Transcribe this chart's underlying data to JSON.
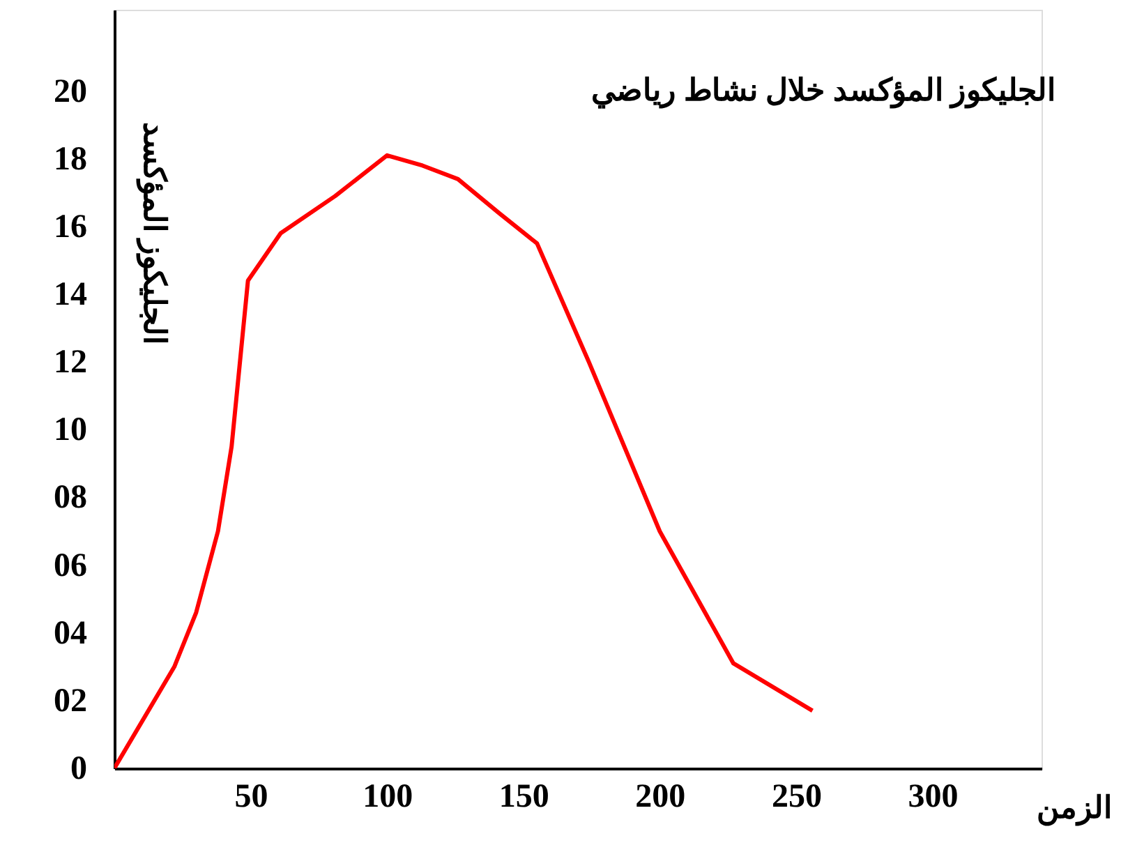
{
  "chart_data": {
    "type": "line",
    "title": "الجليكوز المؤكسد خلال نشاط رياضي",
    "xlabel": "الزمن",
    "ylabel": "الجليكوز المؤكسد",
    "x": [
      0,
      22,
      30,
      38,
      43,
      49,
      61,
      81,
      100,
      113,
      126,
      141,
      155,
      174,
      200,
      227,
      256
    ],
    "series": [
      {
        "color": "#ff0000",
        "values": [
          0,
          3.0,
          4.6,
          7.0,
          9.5,
          14.4,
          15.8,
          16.9,
          18.1,
          17.8,
          17.4,
          16.4,
          15.5,
          12.0,
          7.0,
          3.1,
          1.7
        ]
      }
    ],
    "xlim": [
      0,
      340
    ],
    "ylim": [
      0,
      22.4
    ],
    "xticks": [
      50,
      100,
      150,
      200,
      250,
      300
    ],
    "yticks": [
      0,
      {
        "value": 2,
        "label": "02"
      },
      {
        "value": 4,
        "label": "04"
      },
      {
        "value": 6,
        "label": "06"
      },
      {
        "value": 8,
        "label": "08"
      },
      10,
      12,
      14,
      16,
      18,
      20
    ],
    "grid": false,
    "marker": "none",
    "line_style": "solid"
  }
}
